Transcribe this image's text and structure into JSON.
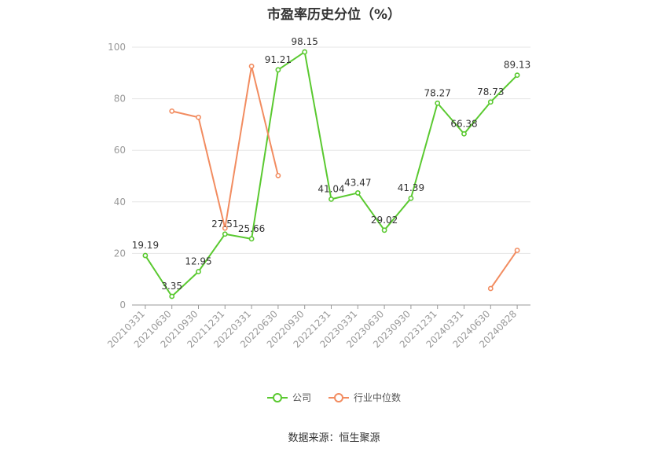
{
  "title": "市盈率历史分位（%）",
  "source": "数据来源：恒生聚源",
  "chart_data": {
    "type": "line",
    "categories": [
      "20210331",
      "20210630",
      "20210930",
      "20211231",
      "20220331",
      "20220630",
      "20220930",
      "20221231",
      "20230331",
      "20230630",
      "20230930",
      "20231231",
      "20240331",
      "20240630",
      "20240828"
    ],
    "ylim": [
      0,
      100
    ],
    "yticks": [
      0,
      20,
      40,
      60,
      80,
      100
    ],
    "grid": true,
    "legend_position": "bottom",
    "series": [
      {
        "name": "公司",
        "color": "#5ac930",
        "show_labels": true,
        "values": [
          19.19,
          3.35,
          12.95,
          27.51,
          25.66,
          91.21,
          98.15,
          41.04,
          43.47,
          29.02,
          41.39,
          78.27,
          66.38,
          78.73,
          89.13
        ],
        "labels": [
          "19.19",
          "3.35",
          "12.95",
          "27.51",
          "25.66",
          "91.21",
          "98.15",
          "41.04",
          "43.47",
          "29.02",
          "41.39",
          "78.27",
          "66.38",
          "78.73",
          "89.13"
        ]
      },
      {
        "name": "行业中位数",
        "color": "#f28c60",
        "show_labels": false,
        "values": [
          null,
          75.2,
          72.8,
          29.8,
          92.6,
          50.2,
          null,
          null,
          null,
          null,
          null,
          null,
          null,
          6.4,
          21.2
        ]
      }
    ]
  }
}
